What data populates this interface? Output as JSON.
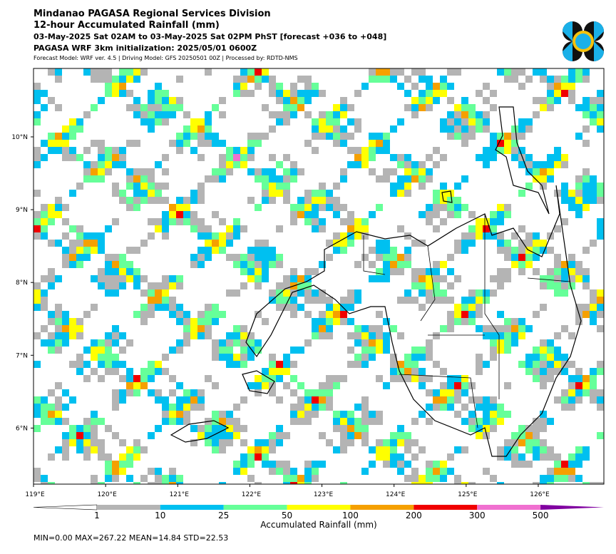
{
  "header": {
    "office": "Mindanao PAGASA Regional Services Division",
    "title": "12-hour Accumulated Rainfall (mm)",
    "period": "03-May-2025 Sat 02AM to 03-May-2025 Sat 02PM PhST [forecast +036 to +048]",
    "init": "PAGASA WRF 3km initialization: 2025/05/01 0600Z",
    "model": "Forecast Model: WRF ver. 4.5 | Driving Model: GFS 20250501 00Z | Processed by: RDTD-NMS"
  },
  "map": {
    "lon_range": [
      119,
      126.91
    ],
    "lat_range": [
      5.23,
      10.94
    ],
    "lon_ticks": [
      {
        "value": 119,
        "label": "119°E"
      },
      {
        "value": 120,
        "label": "120°E"
      },
      {
        "value": 121,
        "label": "121°E"
      },
      {
        "value": 122,
        "label": "122°E"
      },
      {
        "value": 123,
        "label": "123°E"
      },
      {
        "value": 124,
        "label": "124°E"
      },
      {
        "value": 125,
        "label": "125°E"
      },
      {
        "value": 126,
        "label": "126°E"
      }
    ],
    "lat_ticks": [
      {
        "value": 10,
        "label": "10°N"
      },
      {
        "value": 9,
        "label": "9°N"
      },
      {
        "value": 8,
        "label": "8°N"
      },
      {
        "value": 7,
        "label": "7°N"
      },
      {
        "value": 6,
        "label": "6°N"
      }
    ]
  },
  "colorbar": {
    "label": "Accumulated Rainfall (mm)",
    "levels": [
      1,
      10,
      25,
      50,
      100,
      200,
      300,
      500
    ],
    "colors": [
      "#b4b4b4",
      "#00c0f0",
      "#66ff99",
      "#ffff00",
      "#f5a000",
      "#f00000",
      "#f070d0"
    ],
    "under_color": "#ffffff",
    "over_color": "#8000a0"
  },
  "stats": "MIN=0.00   MAX=267.22   MEAN=14.84   STD=22.53"
}
